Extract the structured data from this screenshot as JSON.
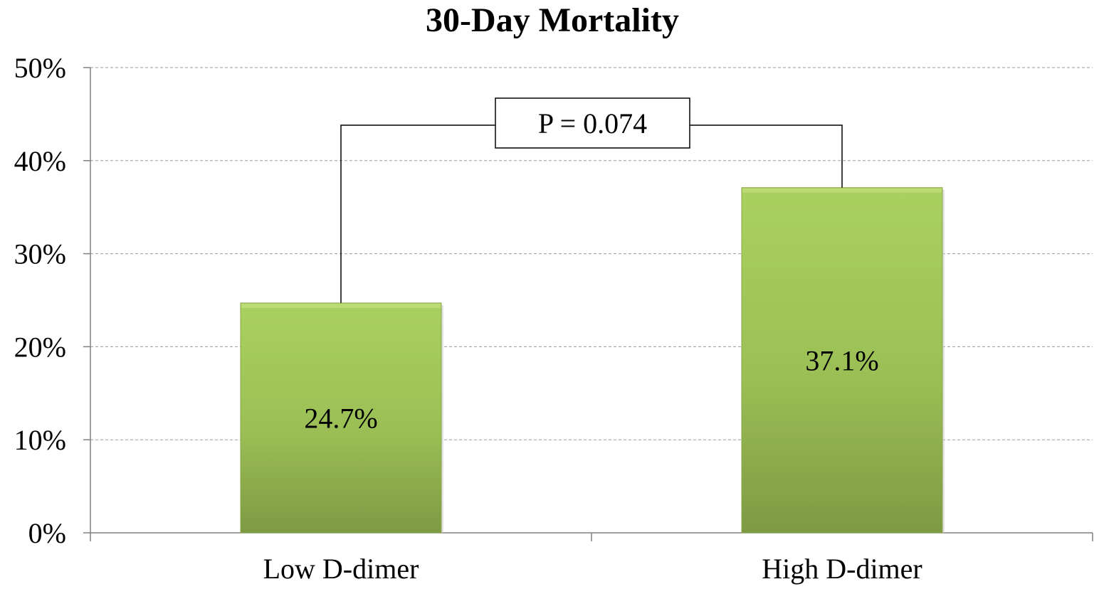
{
  "chart_data": {
    "type": "bar",
    "title": "30-Day Mortality",
    "xlabel": "",
    "ylabel": "",
    "categories": [
      "Low D-dimer",
      "High D-dimer"
    ],
    "values": [
      24.7,
      37.1
    ],
    "value_labels": [
      "24.7%",
      "37.1%"
    ],
    "ylim": [
      0,
      50
    ],
    "yticks": [
      0,
      10,
      20,
      30,
      40,
      50
    ],
    "ytick_labels": [
      "0%",
      "10%",
      "20%",
      "30%",
      "40%",
      "50%"
    ],
    "grid": true,
    "legend": "none",
    "bar_color": "#9bbb59",
    "annotation": {
      "text": "P = 0.074",
      "between": [
        "Low D-dimer",
        "High D-dimer"
      ]
    }
  }
}
